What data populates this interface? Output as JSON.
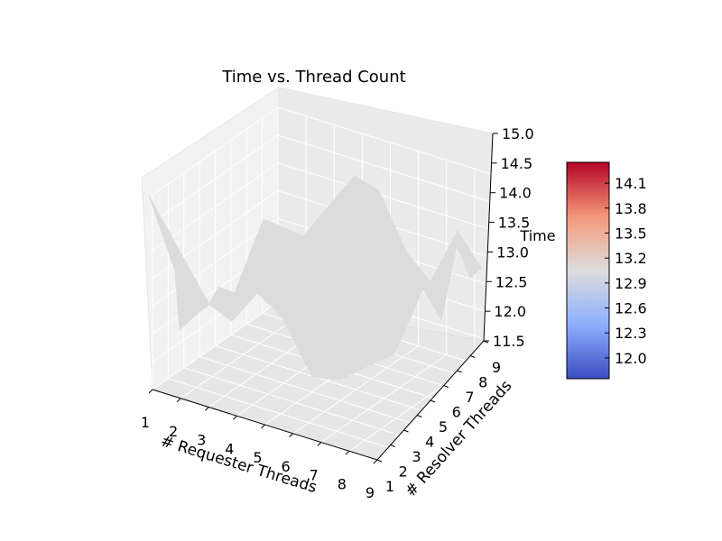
{
  "chart_data": {
    "type": "surface3d",
    "title": "Time vs. Thread Count",
    "xlabel": "# Requester Threads",
    "ylabel": "# Resolver Threads",
    "zlabel": "Time",
    "x_ticks": [
      "1",
      "2",
      "3",
      "4",
      "5",
      "6",
      "7",
      "8",
      "9"
    ],
    "y_ticks": [
      "1",
      "2",
      "3",
      "4",
      "5",
      "6",
      "7",
      "8",
      "9"
    ],
    "z_ticks": [
      "11.5",
      "12.0",
      "12.5",
      "13.0",
      "13.5",
      "14.0",
      "14.5",
      "15.0"
    ],
    "xlim": [
      1,
      9
    ],
    "ylim": [
      1,
      9
    ],
    "zlim": [
      11.5,
      15.0
    ],
    "surface_color": "#dcdcdc",
    "colorbar": {
      "colormap": "coolwarm",
      "ticks": [
        "12.0",
        "12.3",
        "12.6",
        "12.9",
        "13.2",
        "13.5",
        "13.8",
        "14.1"
      ],
      "range": [
        11.75,
        14.35
      ]
    },
    "grid": true
  }
}
